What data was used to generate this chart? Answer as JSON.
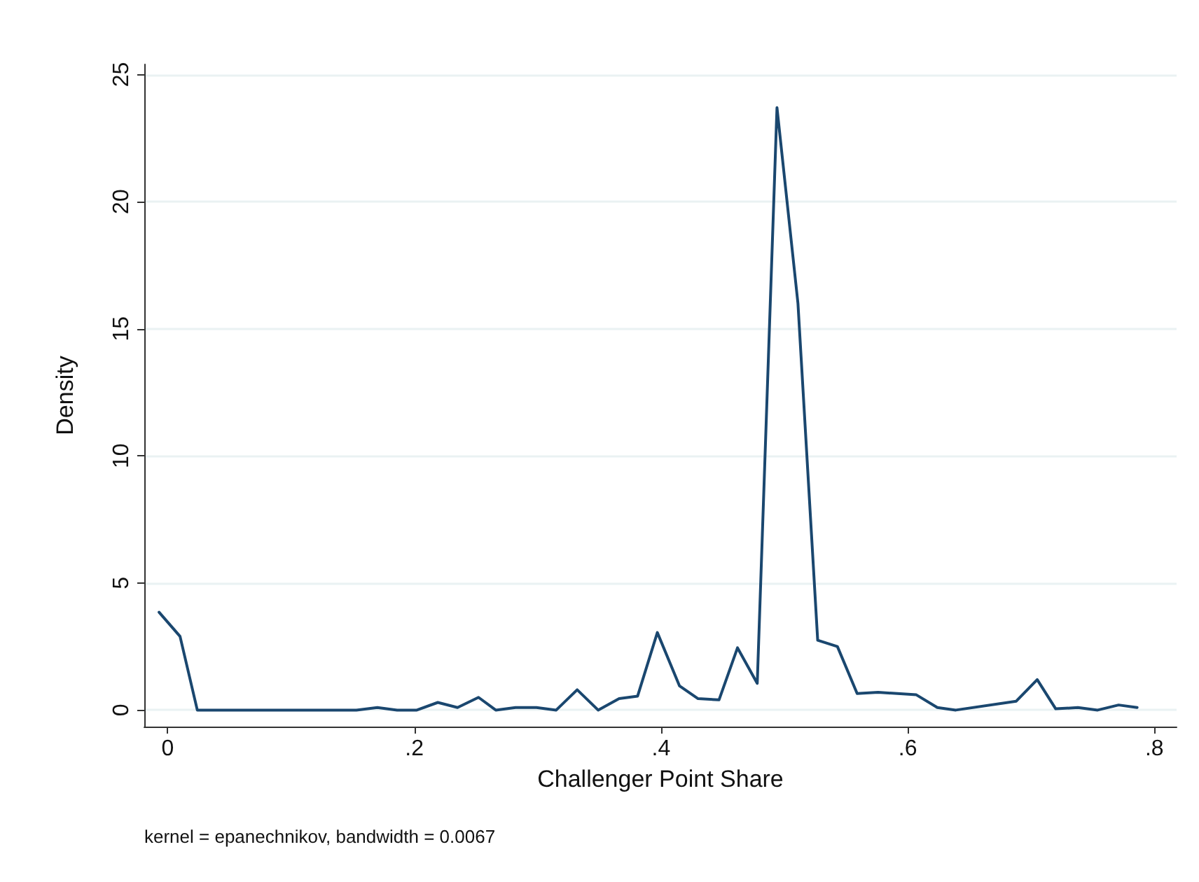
{
  "chart_data": {
    "type": "line",
    "xlabel": "Challenger Point Share",
    "ylabel": "Density",
    "annotations": [
      "kernel = epanechnikov, bandwidth = 0.0067"
    ],
    "x": [
      -0.007,
      0.01,
      0.024,
      0.153,
      0.17,
      0.186,
      0.202,
      0.219,
      0.235,
      0.252,
      0.266,
      0.282,
      0.299,
      0.315,
      0.332,
      0.349,
      0.366,
      0.381,
      0.397,
      0.415,
      0.43,
      0.447,
      0.462,
      0.478,
      0.494,
      0.511,
      0.527,
      0.543,
      0.559,
      0.576,
      0.607,
      0.624,
      0.639,
      0.688,
      0.705,
      0.72,
      0.738,
      0.754,
      0.771,
      0.786
    ],
    "series": [
      {
        "color": "#1a476f",
        "values": [
          3.85,
          2.9,
          0,
          0,
          0.1,
          0,
          0,
          0.3,
          0.1,
          0.5,
          0,
          0.1,
          0.1,
          0,
          0.8,
          0,
          0.45,
          0.55,
          3.05,
          0.95,
          0.45,
          0.4,
          2.45,
          1.05,
          23.7,
          16.0,
          2.75,
          2.5,
          0.65,
          0.7,
          0.6,
          0.1,
          0,
          0.35,
          1.2,
          0.05,
          0.1,
          0,
          0.2,
          0.1
        ]
      }
    ],
    "xlim": [
      -0.019,
      0.818
    ],
    "xticks": [
      {
        "value": 0,
        "label": "0"
      },
      {
        "value": 0.2,
        "label": ".2"
      },
      {
        "value": 0.4,
        "label": ".4"
      },
      {
        "value": 0.6,
        "label": ".6"
      },
      {
        "value": 0.8,
        "label": ".8"
      }
    ],
    "ylim": [
      -0.65,
      25.4
    ],
    "yticks": [
      0,
      5,
      10,
      15,
      20,
      25
    ],
    "grid": "y",
    "marker": "none",
    "line_style": "solid"
  }
}
